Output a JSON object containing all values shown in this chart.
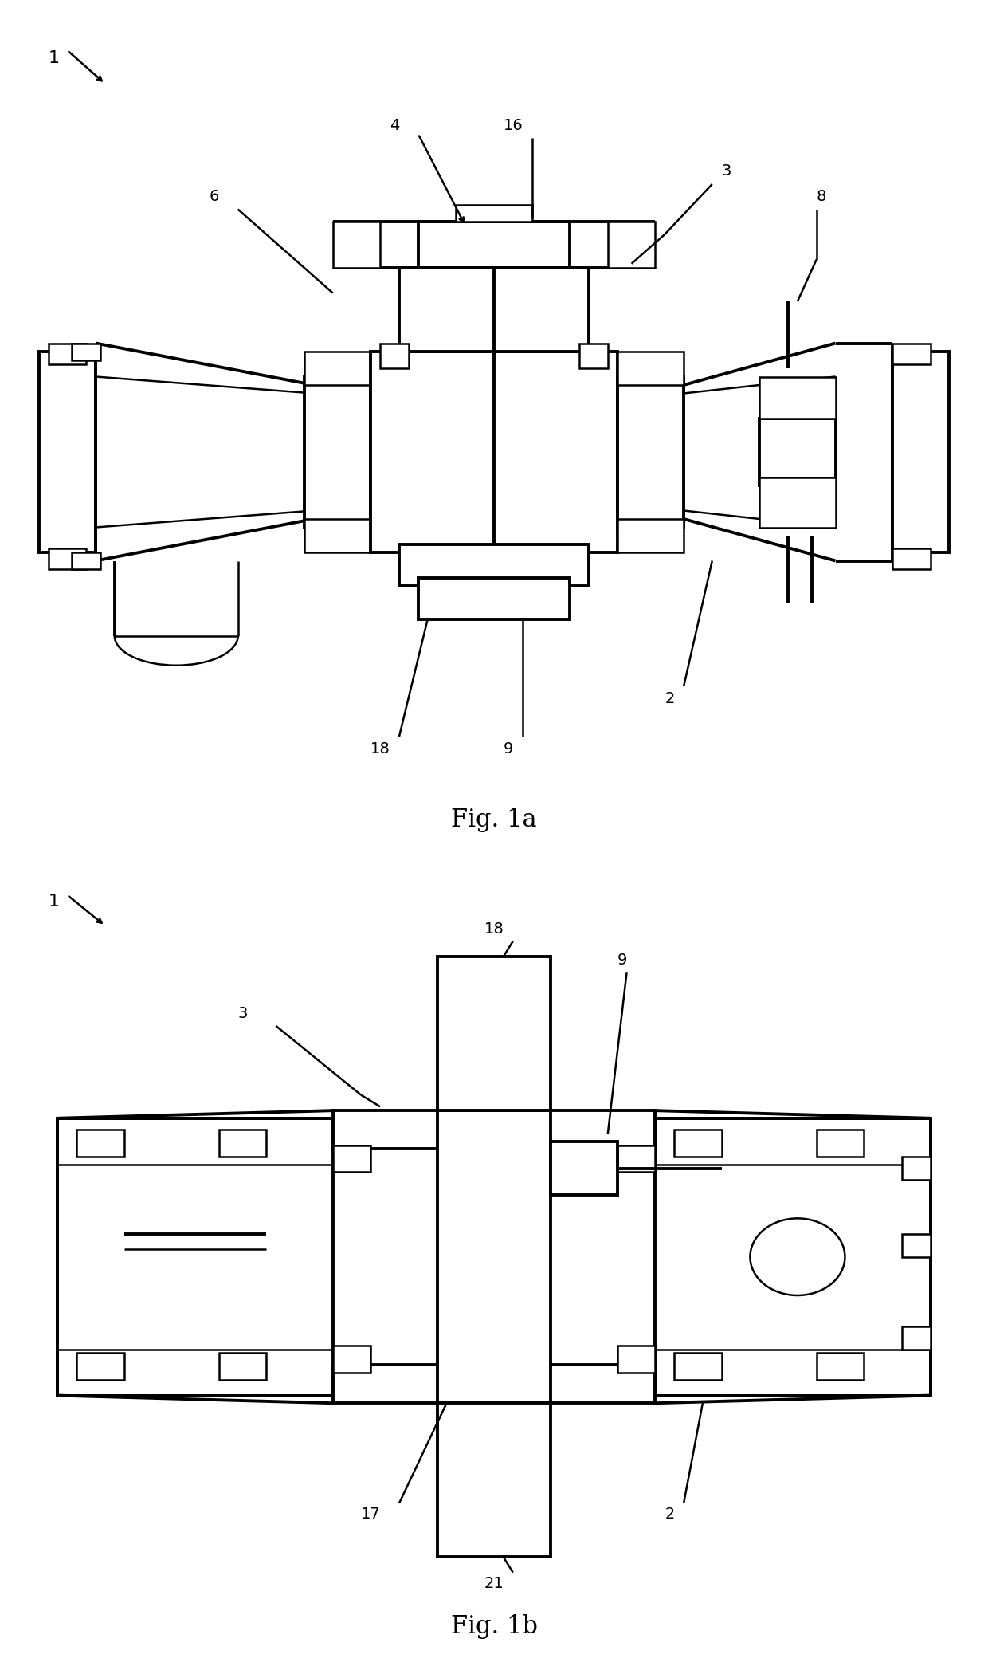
{
  "bg_color": "#ffffff",
  "line_color": "#000000",
  "lw": 1.8,
  "lw2": 2.8,
  "fig_width": 12.4,
  "fig_height": 21.0,
  "fig1a_title": "Fig. 1a",
  "fig1b_title": "Fig. 1b",
  "fs": 14,
  "title_fs": 22
}
